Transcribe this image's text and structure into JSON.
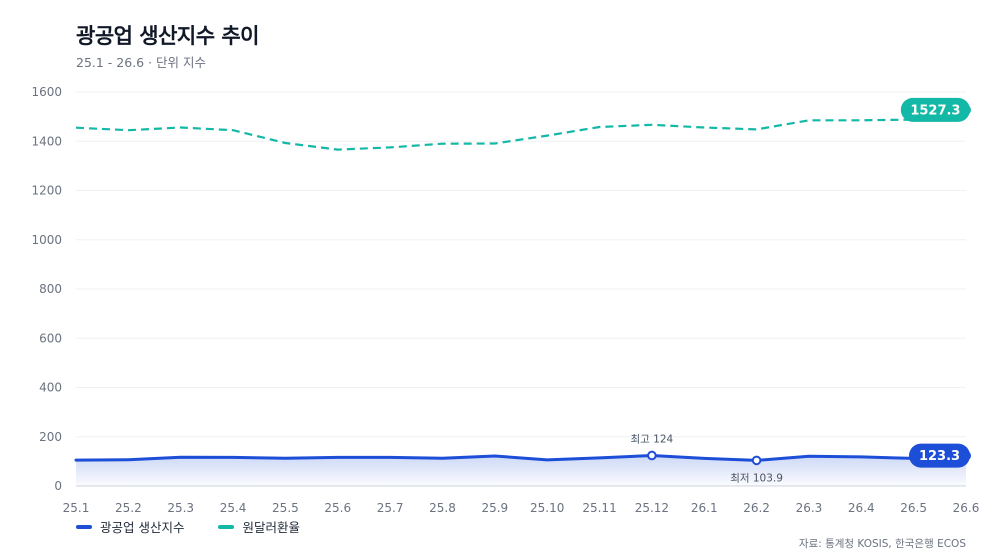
{
  "header": {
    "title": "광공업 생산지수 추이",
    "subtitle": "25.1 - 26.6 · 단위 지수"
  },
  "source": "자료: 통계청 KOSIS, 한국은행 ECOS",
  "colors": {
    "series1": "#1d4ed8",
    "series2": "#14b8a6",
    "grid": "#eef0f3",
    "axis": "#d1d5db"
  },
  "chart_data": {
    "type": "line",
    "x": [
      "25.1",
      "25.2",
      "25.3",
      "25.4",
      "25.5",
      "25.6",
      "25.7",
      "25.8",
      "25.9",
      "25.10",
      "25.11",
      "25.12",
      "26.1",
      "26.2",
      "26.3",
      "26.4",
      "26.5",
      "26.6"
    ],
    "yticks": [
      0,
      200,
      400,
      600,
      800,
      1000,
      1200,
      1400,
      1600
    ],
    "ylim": [
      0,
      1600
    ],
    "grid": true,
    "legend_position": "bottom-left",
    "series": [
      {
        "name": "광공업 생산지수",
        "style": "solid-area",
        "values": [
          105,
          107,
          117,
          116,
          113,
          116,
          116,
          113,
          122,
          106,
          114,
          124,
          112,
          103.9,
          121,
          118,
          112,
          123.3
        ],
        "end_label": "123.3"
      },
      {
        "name": "원달러환율",
        "style": "dashed",
        "values": [
          1455,
          1445,
          1456,
          1445,
          1393,
          1366,
          1375,
          1390,
          1391,
          1423,
          1458,
          1467,
          1456,
          1448,
          1485,
          1485,
          1488,
          1527.3
        ],
        "end_label": "1527.3"
      }
    ],
    "annotations": [
      {
        "series": 0,
        "index": 11,
        "text": "최고 124",
        "position": "above"
      },
      {
        "series": 0,
        "index": 13,
        "text": "최저 103.9",
        "position": "below"
      }
    ]
  }
}
